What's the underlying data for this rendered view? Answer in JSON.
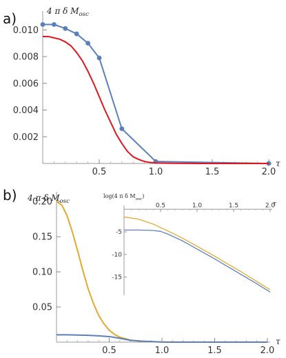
{
  "panels": {
    "a": {
      "label": "a)"
    },
    "b": {
      "label": "b)"
    }
  },
  "chart_data": [
    {
      "id": "a",
      "type": "line",
      "ylabel": "4 π δ M_osc",
      "xlabel": "τ",
      "xlim": [
        0,
        2.0
      ],
      "ylim": [
        0,
        0.0112
      ],
      "xticks": [
        "0.5",
        "1.0",
        "1.5",
        "2.0"
      ],
      "xtick_values": [
        0.5,
        1.0,
        1.5,
        2.0
      ],
      "yticks": [
        "0.002",
        "0.004",
        "0.006",
        "0.008",
        "0.010"
      ],
      "ytick_values": [
        0.002,
        0.004,
        0.006,
        0.008,
        0.01
      ],
      "series": [
        {
          "color": "#5b7fb8",
          "markers": true,
          "x": [
            0,
            0.1,
            0.2,
            0.3,
            0.4,
            0.5,
            0.7,
            1.0,
            2.0
          ],
          "y": [
            0.0104,
            0.0104,
            0.0101,
            0.0097,
            0.009,
            0.0079,
            0.0026,
            0.00015,
            0.0
          ]
        },
        {
          "color": "#e0141e",
          "markers": false,
          "x": [
            0,
            0.05,
            0.1,
            0.15,
            0.2,
            0.25,
            0.3,
            0.35,
            0.4,
            0.45,
            0.5,
            0.55,
            0.6,
            0.65,
            0.7,
            0.75,
            0.8,
            0.85,
            0.9,
            0.95,
            1.0,
            1.1,
            1.2,
            1.4,
            1.6,
            1.8,
            2.0
          ],
          "y": [
            0.0095,
            0.0095,
            0.0094,
            0.0093,
            0.0091,
            0.0088,
            0.0083,
            0.0077,
            0.0069,
            0.006,
            0.005,
            0.004,
            0.0031,
            0.0022,
            0.0015,
            0.0009,
            0.0005,
            0.0003,
            0.00015,
            8e-05,
            4e-05,
            2e-05,
            1e-05,
            0.0,
            0.0,
            0.0,
            0.0
          ]
        }
      ]
    },
    {
      "id": "b",
      "type": "line",
      "ylabel": "4 π δ M_osc",
      "xlabel": "τ",
      "xlim": [
        0,
        2.0
      ],
      "ylim": [
        0,
        0.21
      ],
      "xticks": [
        "0.5",
        "1.0",
        "1.5",
        "2.0"
      ],
      "xtick_values": [
        0.5,
        1.0,
        1.5,
        2.0
      ],
      "yticks": [
        "0.05",
        "0.10",
        "0.15",
        "0.20"
      ],
      "ytick_values": [
        0.05,
        0.1,
        0.15,
        0.2
      ],
      "series": [
        {
          "color": "#e3a92c",
          "x": [
            0,
            0.05,
            0.1,
            0.15,
            0.2,
            0.25,
            0.3,
            0.35,
            0.4,
            0.45,
            0.5,
            0.55,
            0.6,
            0.7,
            0.8,
            0.9,
            1.0,
            1.2,
            1.4,
            1.6,
            1.8,
            2.0
          ],
          "y": [
            0.2,
            0.195,
            0.18,
            0.157,
            0.13,
            0.102,
            0.076,
            0.055,
            0.038,
            0.026,
            0.017,
            0.011,
            0.007,
            0.003,
            0.0012,
            0.0005,
            0.0002,
            0.0,
            0.0,
            0.0,
            0.0,
            0.0
          ]
        },
        {
          "color": "#5b7fb8",
          "x": [
            0,
            0.1,
            0.2,
            0.3,
            0.4,
            0.5,
            0.6,
            0.7,
            0.8,
            0.9,
            1.0,
            1.2,
            1.4,
            1.6,
            1.8,
            2.0
          ],
          "y": [
            0.0104,
            0.0104,
            0.0101,
            0.0097,
            0.009,
            0.0079,
            0.0055,
            0.0026,
            0.0015,
            0.0008,
            0.00015,
            0.0,
            0.0,
            0.0,
            0.0,
            0.0
          ]
        }
      ]
    },
    {
      "id": "b-inset",
      "type": "line",
      "ylabel": "log(4 π δ M_osc)",
      "xlabel": "τ",
      "xlim": [
        0,
        2.0
      ],
      "ylim": [
        -19,
        0.5
      ],
      "xticks": [
        "0.5",
        "1.0",
        "1.5",
        "2.0"
      ],
      "xtick_values": [
        0.5,
        1.0,
        1.5,
        2.0
      ],
      "yticks": [
        "-5",
        "-10",
        "-15"
      ],
      "ytick_values": [
        -5,
        -10,
        -15
      ],
      "series": [
        {
          "color": "#e3a92c",
          "x": [
            0,
            0.2,
            0.4,
            0.6,
            0.8,
            1.0,
            1.2,
            1.4,
            1.6,
            1.8,
            2.0
          ],
          "y": [
            -1.7,
            -2.2,
            -3.3,
            -4.8,
            -6.4,
            -8.2,
            -10.0,
            -11.9,
            -13.8,
            -15.8,
            -17.8
          ]
        },
        {
          "color": "#5b7fb8",
          "x": [
            0,
            0.2,
            0.4,
            0.5,
            0.6,
            0.8,
            1.0,
            1.2,
            1.4,
            1.6,
            1.8,
            2.0
          ],
          "y": [
            -4.6,
            -4.6,
            -4.7,
            -4.9,
            -5.5,
            -7.0,
            -8.8,
            -10.6,
            -12.5,
            -14.4,
            -16.3,
            -18.3
          ]
        }
      ]
    }
  ]
}
